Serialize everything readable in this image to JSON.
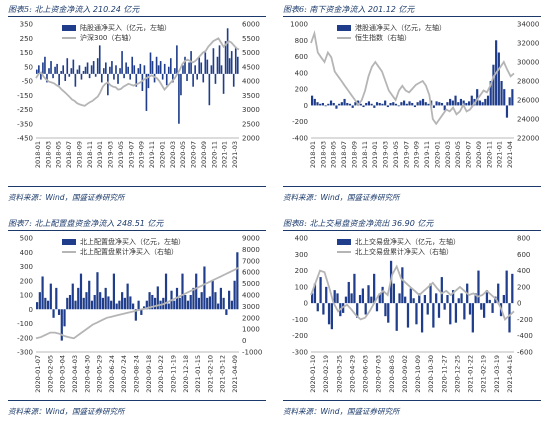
{
  "colors": {
    "bar": "#1f3d8a",
    "line": "#b5b5b5",
    "frame": "#1b3a6b"
  },
  "panels": [
    {
      "title_prefix": "图表",
      "title_num": "5:",
      "title_text": "北上资金净流入 210.24 亿元",
      "source": "资料来源：Wind，国盛证券研究所"
    },
    {
      "title_prefix": "图表",
      "title_num": "6:",
      "title_text": "南下资金净流入 201.12 亿元",
      "source": "资料来源：Wind，国盛证券研究所"
    },
    {
      "title_prefix": "图表",
      "title_num": "7:",
      "title_text": "北上配置盘资金净流入 248.51 亿元",
      "source": "资料来源：Wind，国盛证券研究所"
    },
    {
      "title_prefix": "图表",
      "title_num": "8:",
      "title_text": "北上交易盘资金净流出 36.90 亿元",
      "source": "资料来源：Wind，国盛证券研究所"
    }
  ],
  "chart_data": [
    {
      "type": "bar",
      "combo": "bar+line",
      "legend_position": "top-center",
      "grid": false,
      "x_ticks": [
        "2018-01",
        "2018-03",
        "2018-05",
        "2018-07",
        "2018-09",
        "2018-11",
        "2019-01",
        "2019-03",
        "2019-05",
        "2019-07",
        "2019-09",
        "2019-11",
        "2020-01",
        "2020-03",
        "2020-05",
        "2020-07",
        "2020-09",
        "2020-11",
        "2021-01",
        "2021-03"
      ],
      "y_left": {
        "ticks": [
          -450,
          -350,
          -250,
          -150,
          -50,
          50,
          150,
          250,
          350
        ],
        "lim": [
          -450,
          350
        ]
      },
      "y_right": {
        "ticks": [
          2000,
          2500,
          3000,
          3500,
          4000,
          4500,
          5000,
          5500,
          6000
        ],
        "lim": [
          2000,
          6000
        ]
      },
      "series": [
        {
          "name": "陆股通净买入（亿元，左轴）",
          "kind": "bar",
          "axis": "left",
          "values": [
            30,
            60,
            -40,
            80,
            120,
            -60,
            40,
            90,
            -30,
            50,
            70,
            -80,
            20,
            60,
            -50,
            110,
            -20,
            40,
            100,
            -90,
            30,
            60,
            -40,
            20,
            50,
            80,
            -30,
            60,
            90,
            -20,
            110,
            200,
            -60,
            40,
            80,
            -150,
            50,
            90,
            -40,
            60,
            -70,
            40,
            160,
            -30,
            80,
            50,
            -40,
            120,
            60,
            -90,
            40,
            70,
            -120,
            60,
            -260,
            -100,
            150,
            90,
            -60,
            120,
            60,
            90,
            -40,
            70,
            -80,
            50,
            110,
            -60,
            40,
            200,
            -350,
            -150,
            60,
            120,
            -50,
            80,
            160,
            -90,
            60,
            -40,
            120,
            80,
            -60,
            150,
            100,
            -220,
            60,
            180,
            -70,
            120,
            200,
            60,
            -140,
            230,
            320,
            110,
            160,
            -90,
            190,
            120
          ]
        },
        {
          "name": "沪深300（右轴）",
          "kind": "line",
          "axis": "right",
          "values": [
            4100,
            4250,
            4300,
            4150,
            4050,
            3980,
            3950,
            3920,
            3850,
            3800,
            3700,
            3620,
            3540,
            3450,
            3350,
            3300,
            3220,
            3180,
            3150,
            3130,
            3200,
            3260,
            3300,
            3380,
            3450,
            3600,
            3800,
            3900,
            3950,
            3850,
            3800,
            3780,
            3700,
            3720,
            3800,
            3850,
            3900,
            3870,
            3840,
            3880,
            3920,
            3980,
            4050,
            4100,
            4150,
            4200,
            4150,
            4100,
            4000,
            3850,
            3700,
            3800,
            3900,
            4000,
            4100,
            4250,
            4400,
            4600,
            4700,
            4750,
            4700,
            4650,
            4700,
            4800,
            4900,
            5000,
            5050,
            5200,
            5300,
            5400,
            5450,
            5500,
            5350,
            5200,
            5300,
            5400,
            5350,
            5250,
            5150,
            5100
          ]
        }
      ]
    },
    {
      "type": "bar",
      "combo": "bar+line",
      "legend_position": "top-center",
      "grid": false,
      "x_ticks": [
        "2018-01",
        "2018-03",
        "2018-05",
        "2018-07",
        "2018-09",
        "2018-11",
        "2019-01",
        "2019-03",
        "2019-05",
        "2019-07",
        "2019-09",
        "2019-11",
        "2020-01",
        "2020-03",
        "2020-05",
        "2020-07",
        "2020-09",
        "2020-11",
        "2021-01",
        "2021-04"
      ],
      "y_left": {
        "ticks": [
          -400,
          -200,
          0,
          200,
          400,
          600,
          800,
          1000
        ],
        "lim": [
          -400,
          1000
        ]
      },
      "y_right": {
        "ticks": [
          22000,
          24000,
          26000,
          28000,
          30000,
          32000,
          34000
        ],
        "lim": [
          22000,
          34000
        ]
      },
      "series": [
        {
          "name": "港股通净买入（亿元，左轴）",
          "kind": "bar",
          "axis": "left",
          "values": [
            120,
            80,
            40,
            20,
            30,
            -10,
            20,
            60,
            30,
            -40,
            20,
            40,
            80,
            30,
            20,
            -30,
            40,
            60,
            20,
            -20,
            30,
            50,
            20,
            -30,
            40,
            30,
            20,
            60,
            -20,
            30,
            40,
            20,
            -10,
            40,
            60,
            20,
            50,
            30,
            -20,
            40,
            60,
            80,
            40,
            20,
            60,
            -30,
            50,
            40,
            30,
            -60,
            40,
            80,
            60,
            120,
            40,
            80,
            60,
            30,
            50,
            120,
            80,
            200,
            60,
            40,
            80,
            120,
            300,
            500,
            800,
            650,
            300,
            200,
            -150,
            100,
            200
          ]
        },
        {
          "name": "恒生指数（右轴）",
          "kind": "line",
          "axis": "right",
          "values": [
            32000,
            33000,
            31000,
            30500,
            30000,
            31000,
            30500,
            29000,
            28500,
            28000,
            27500,
            27000,
            26500,
            26000,
            25500,
            26000,
            27000,
            28500,
            29500,
            30000,
            29500,
            29000,
            28000,
            27000,
            26500,
            26000,
            27000,
            27500,
            27000,
            26800,
            27200,
            27600,
            27800,
            28000,
            27500,
            26500,
            24000,
            23500,
            24000,
            24500,
            25000,
            24800,
            25200,
            24500,
            24800,
            25500,
            24800,
            25000,
            25500,
            26000,
            26500,
            27000,
            26800,
            27500,
            28500,
            29000,
            29500,
            30000,
            29200,
            28500,
            28800
          ]
        }
      ]
    },
    {
      "type": "bar",
      "combo": "bar+line",
      "legend_position": "top-center",
      "grid": false,
      "x_ticks": [
        "2020-01-07",
        "2020-02-05",
        "2020-03-04",
        "2020-04-03",
        "2020-04-30",
        "2020-05-29",
        "2020-06-24",
        "2020-07-24",
        "2020-08-24",
        "2020-09-18",
        "2020-10-22",
        "2020-11-19",
        "2020-12-18",
        "2021-01-15",
        "2021-02-10",
        "2021-03-12",
        "2021-04-09"
      ],
      "y_left": {
        "ticks": [
          -300,
          -200,
          -100,
          0,
          100,
          200,
          300,
          400,
          500
        ],
        "lim": [
          -300,
          500
        ]
      },
      "y_right": {
        "ticks": [
          -1000,
          0,
          1000,
          2000,
          3000,
          4000,
          5000,
          6000,
          7000,
          8000,
          9000
        ],
        "lim": [
          -1000,
          9000
        ]
      },
      "series": [
        {
          "name": "北上配置盘净买入（亿元，左轴）",
          "kind": "bar",
          "axis": "left",
          "values": [
            50,
            120,
            230,
            80,
            60,
            180,
            -60,
            150,
            -40,
            -220,
            -120,
            80,
            100,
            180,
            60,
            150,
            250,
            80,
            120,
            200,
            60,
            100,
            260,
            120,
            80,
            150,
            90,
            60,
            250,
            40,
            60,
            120,
            80,
            180,
            90,
            40,
            -80,
            60,
            -40,
            20,
            60,
            120,
            100,
            80,
            160,
            60,
            80,
            250,
            40,
            130,
            60,
            150,
            80,
            250,
            100,
            60,
            100,
            150,
            250,
            80,
            120,
            300,
            80,
            90,
            200,
            120,
            40,
            150,
            80,
            -40,
            130,
            60,
            200,
            400
          ]
        },
        {
          "name": "北上配置盘累计净买入（右轴）",
          "kind": "line",
          "axis": "right",
          "values": [
            200,
            300,
            500,
            700,
            700,
            600,
            400,
            300,
            200,
            500,
            800,
            1100,
            1400,
            1600,
            1800,
            2000,
            2100,
            2200,
            2300,
            2400,
            2500,
            2600,
            2700,
            2800,
            2900,
            3000,
            3100,
            3200,
            3400,
            3600,
            3800,
            4000,
            4200,
            4400,
            4600,
            4800,
            5000,
            5200,
            5400,
            5600,
            5800,
            6000,
            6200,
            6400
          ]
        }
      ]
    },
    {
      "type": "bar",
      "combo": "bar+line",
      "legend_position": "top-center",
      "grid": false,
      "x_ticks": [
        "2020-01-10",
        "2020-02-19",
        "2020-03-25",
        "2020-04-29",
        "2020-06-03",
        "2020-07-03",
        "2020-08-05",
        "2020-09-02",
        "2020-10-09",
        "2020-10-30",
        "2020-11-27",
        "2020-12-25",
        "2021-01-22",
        "2021-02-19",
        "2021-03-19",
        "2021-04-16"
      ],
      "y_left": {
        "ticks": [
          -300,
          -200,
          -100,
          0,
          100,
          200,
          300,
          400
        ],
        "lim": [
          -300,
          400
        ]
      },
      "y_right": {
        "ticks": [
          -600,
          -400,
          -200,
          0,
          200,
          400,
          600,
          800
        ],
        "lim": [
          -600,
          800
        ]
      },
      "series": [
        {
          "name": "北上交易盘净买入（亿元，左轴）",
          "kind": "bar",
          "axis": "left",
          "values": [
            60,
            120,
            -50,
            160,
            -70,
            100,
            -130,
            -160,
            80,
            60,
            -80,
            -60,
            40,
            130,
            60,
            180,
            -90,
            50,
            90,
            -70,
            110,
            40,
            180,
            -50,
            60,
            100,
            -80,
            -120,
            260,
            120,
            -170,
            60,
            220,
            40,
            -150,
            90,
            30,
            -130,
            60,
            -180,
            50,
            -70,
            120,
            -150,
            60,
            -90,
            160,
            -40,
            50,
            -130,
            80,
            -120,
            30,
            60,
            -100,
            120,
            -70,
            -180,
            60,
            200,
            -40,
            -90,
            80,
            20,
            -60,
            40,
            120,
            -80,
            50,
            200,
            -180,
            180
          ]
        },
        {
          "name": "北上交易盘累计净买入（右轴）",
          "kind": "line",
          "axis": "right",
          "values": [
            100,
            250,
            400,
            380,
            200,
            0,
            -100,
            -50,
            -20,
            -80,
            -150,
            -200,
            -180,
            -100,
            0,
            100,
            150,
            100,
            350,
            450,
            300,
            250,
            200,
            150,
            100,
            150,
            200,
            250,
            180,
            120,
            150,
            100,
            150,
            200,
            150,
            100,
            120,
            80,
            100,
            150,
            100,
            50,
            -50,
            -200,
            -150,
            -100
          ]
        }
      ]
    }
  ]
}
